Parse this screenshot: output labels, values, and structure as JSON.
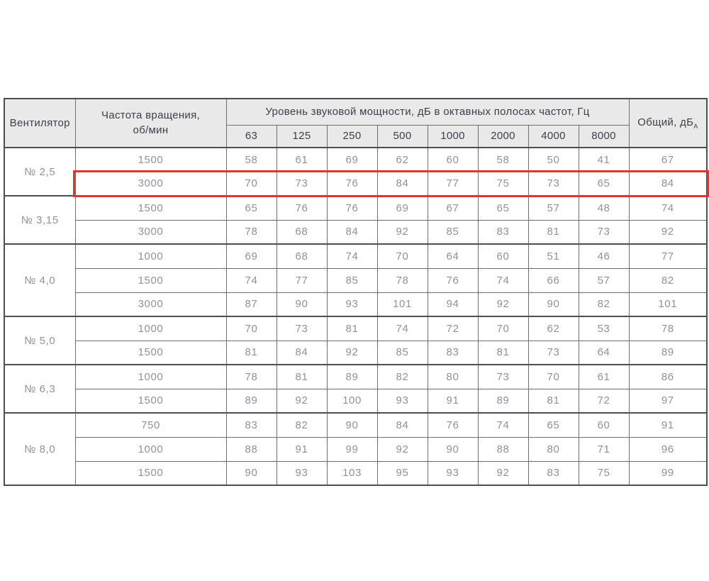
{
  "colors": {
    "header_bg": "#e9e9ea",
    "header_text": "#3a404b",
    "data_text": "#8d929d",
    "grid_line": "#6b6e72",
    "strong_line": "#4b4e52",
    "highlight": "#e5322b"
  },
  "table": {
    "header": {
      "fan": "Вентилятор",
      "speed_line1": "Частота вращения,",
      "speed_line2": "об/мин",
      "span": "Уровень звуковой мощности, дБ в октавных полосах частот, Гц",
      "freqs": [
        "63",
        "125",
        "250",
        "500",
        "1000",
        "2000",
        "4000",
        "8000"
      ],
      "total_label": "Общий, дБ",
      "total_subscript": "А"
    },
    "groups": [
      {
        "fan": "№ 2,5",
        "rows": [
          {
            "speed": "1500",
            "values": [
              58,
              61,
              69,
              62,
              60,
              58,
              50,
              41
            ],
            "total": 67,
            "highlighted": false
          },
          {
            "speed": "3000",
            "values": [
              70,
              73,
              76,
              84,
              77,
              75,
              73,
              65
            ],
            "total": 84,
            "highlighted": true
          }
        ]
      },
      {
        "fan": "№ 3,15",
        "rows": [
          {
            "speed": "1500",
            "values": [
              65,
              76,
              76,
              69,
              67,
              65,
              57,
              48
            ],
            "total": 74,
            "highlighted": false
          },
          {
            "speed": "3000",
            "values": [
              78,
              68,
              84,
              92,
              85,
              83,
              81,
              73
            ],
            "total": 92,
            "highlighted": false
          }
        ]
      },
      {
        "fan": "№ 4,0",
        "rows": [
          {
            "speed": "1000",
            "values": [
              69,
              68,
              74,
              70,
              64,
              60,
              51,
              46
            ],
            "total": 77,
            "highlighted": false
          },
          {
            "speed": "1500",
            "values": [
              74,
              77,
              85,
              78,
              76,
              74,
              66,
              57
            ],
            "total": 82,
            "highlighted": false
          },
          {
            "speed": "3000",
            "values": [
              87,
              90,
              93,
              101,
              94,
              92,
              90,
              82
            ],
            "total": 101,
            "highlighted": false
          }
        ]
      },
      {
        "fan": "№ 5,0",
        "rows": [
          {
            "speed": "1000",
            "values": [
              70,
              73,
              81,
              74,
              72,
              70,
              62,
              53
            ],
            "total": 78,
            "highlighted": false
          },
          {
            "speed": "1500",
            "values": [
              81,
              84,
              92,
              85,
              83,
              81,
              73,
              64
            ],
            "total": 89,
            "highlighted": false
          }
        ]
      },
      {
        "fan": "№ 6,3",
        "rows": [
          {
            "speed": "1000",
            "values": [
              78,
              81,
              89,
              82,
              80,
              73,
              70,
              61
            ],
            "total": 86,
            "highlighted": false
          },
          {
            "speed": "1500",
            "values": [
              89,
              92,
              100,
              93,
              91,
              89,
              81,
              72
            ],
            "total": 97,
            "highlighted": false
          }
        ]
      },
      {
        "fan": "№ 8,0",
        "rows": [
          {
            "speed": "750",
            "values": [
              83,
              82,
              90,
              84,
              76,
              74,
              65,
              60
            ],
            "total": 91,
            "highlighted": false
          },
          {
            "speed": "1000",
            "values": [
              88,
              91,
              99,
              92,
              90,
              88,
              80,
              71
            ],
            "total": 96,
            "highlighted": false
          },
          {
            "speed": "1500",
            "values": [
              90,
              93,
              103,
              95,
              93,
              92,
              83,
              75
            ],
            "total": 99,
            "highlighted": false
          }
        ]
      }
    ]
  }
}
